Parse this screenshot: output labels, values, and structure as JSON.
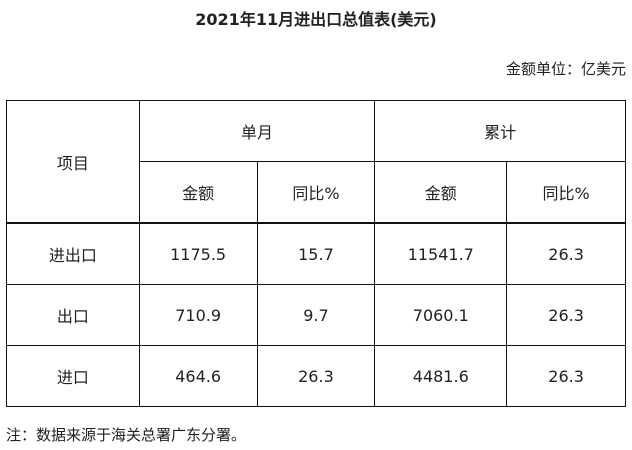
{
  "title": "2021年11月进出口总值表(美元)",
  "unit": "金额单位：亿美元",
  "header": {
    "item": "项目",
    "monthly": "单月",
    "cumulative": "累计",
    "amount": "金额",
    "yoy": "同比%"
  },
  "rows": [
    {
      "item": "进出口",
      "m_amount": "1175.5",
      "m_yoy": "15.7",
      "c_amount": "11541.7",
      "c_yoy": "26.3"
    },
    {
      "item": "出口",
      "m_amount": "710.9",
      "m_yoy": "9.7",
      "c_amount": "7060.1",
      "c_yoy": "26.3"
    },
    {
      "item": "进口",
      "m_amount": "464.6",
      "m_yoy": "26.3",
      "c_amount": "4481.6",
      "c_yoy": "26.3"
    }
  ],
  "note": "注：数据来源于海关总署广东分署。"
}
